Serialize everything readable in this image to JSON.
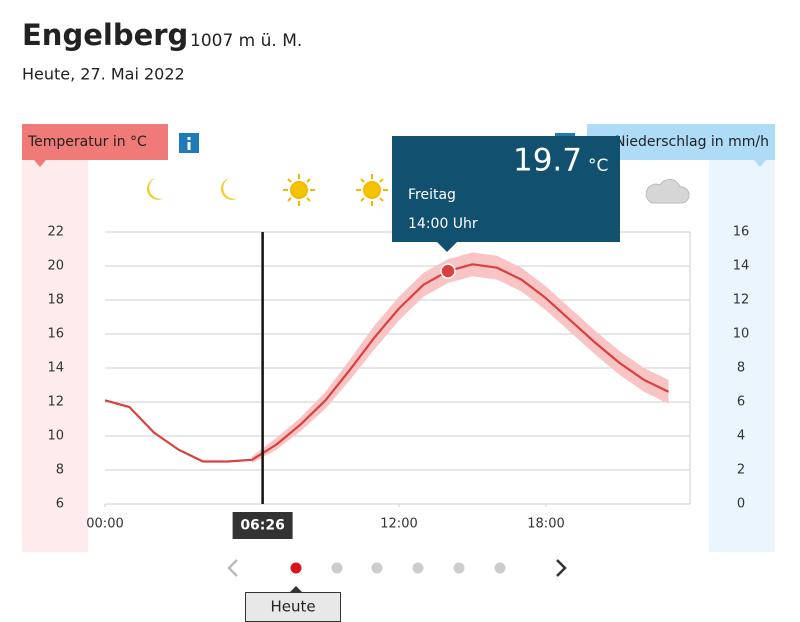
{
  "header": {
    "place": "Engelberg",
    "altitude": "1007 m ü. M.",
    "date": "Heute, 27. Mai 2022"
  },
  "chart_data": {
    "type": "line",
    "y_label": "Temperatur in °C",
    "y2_label": "Niederschlag in mm/h",
    "x": [
      0,
      1,
      2,
      3,
      4,
      5,
      6,
      7,
      8,
      9,
      10,
      11,
      12,
      13,
      14,
      15,
      16,
      17,
      18,
      19,
      20,
      21,
      22,
      23
    ],
    "series": [
      {
        "color": "#d9413f",
        "band_color": "#f8c4c4",
        "values": [
          12.1,
          11.7,
          10.2,
          9.2,
          8.5,
          8.5,
          8.6,
          9.5,
          10.7,
          12.1,
          13.9,
          15.8,
          17.5,
          18.9,
          19.7,
          20.1,
          19.9,
          19.2,
          18.1,
          16.8,
          15.5,
          14.3,
          13.3,
          12.6
        ],
        "band_low": [
          null,
          null,
          null,
          null,
          null,
          null,
          8.4,
          9.2,
          10.3,
          11.6,
          13.3,
          15.1,
          16.8,
          18.2,
          19.0,
          19.4,
          19.2,
          18.5,
          17.4,
          16.1,
          14.8,
          13.6,
          12.6,
          11.9
        ],
        "band_high": [
          null,
          null,
          null,
          null,
          null,
          null,
          8.8,
          9.9,
          11.1,
          12.6,
          14.5,
          16.5,
          18.2,
          19.6,
          20.4,
          20.8,
          20.6,
          19.9,
          18.8,
          17.5,
          16.2,
          15.0,
          14.0,
          13.3
        ]
      }
    ],
    "xlim": [
      0,
      24
    ],
    "xticks": [
      {
        "value": 0,
        "label": "00:00"
      },
      {
        "value": 12,
        "label": "12:00"
      },
      {
        "value": 18,
        "label": "18:00"
      }
    ],
    "ylim": [
      6,
      22
    ],
    "yticks": [
      6,
      8,
      10,
      12,
      14,
      16,
      18,
      20,
      22
    ],
    "y2lim": [
      0,
      16
    ],
    "y2ticks": [
      0,
      2,
      4,
      6,
      8,
      10,
      12,
      14,
      16
    ],
    "grid": true,
    "marker": {
      "value": 6.4333,
      "label": "06:26"
    },
    "tooltip": {
      "x": 14,
      "value": 19.7,
      "unit": "°C",
      "day": "Freitag",
      "time": "14:00 Uhr"
    }
  },
  "pager": {
    "label": "Heute"
  }
}
